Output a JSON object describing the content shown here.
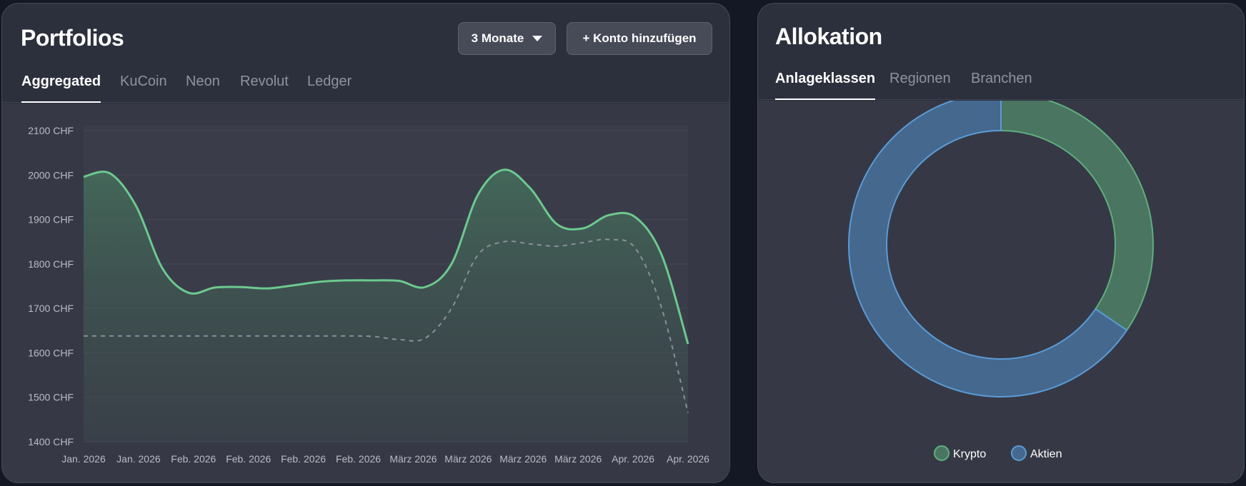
{
  "portfolios": {
    "title": "Portfolios",
    "range_button": "3 Monate",
    "add_button": "+ Konto hinzufügen",
    "tabs": [
      "Aggregated",
      "KuCoin",
      "Neon",
      "Revolut",
      "Ledger"
    ],
    "active_tab": "Aggregated"
  },
  "allocation": {
    "title": "Allokation",
    "tabs": [
      "Anlageklassen",
      "Regionen",
      "Branchen"
    ],
    "active_tab": "Anlageklassen",
    "legend": [
      {
        "label": "Krypto",
        "color": "#4a7560",
        "stroke": "#5fae80"
      },
      {
        "label": "Aktien",
        "color": "#45688f",
        "stroke": "#5b9bd6"
      }
    ],
    "slices": [
      {
        "label": "Krypto",
        "fraction": 0.345
      },
      {
        "label": "Aktien",
        "fraction": 0.655
      }
    ]
  },
  "chart_data": {
    "type": "line",
    "y_unit": "CHF",
    "ylim": [
      1400,
      2100
    ],
    "y_ticks": [
      "2100 CHF",
      "2000 CHF",
      "1900 CHF",
      "1800 CHF",
      "1700 CHF",
      "1600 CHF",
      "1500 CHF",
      "1400 CHF"
    ],
    "y_tick_values": [
      2100,
      2000,
      1900,
      1800,
      1700,
      1600,
      1500,
      1400
    ],
    "x_tick_labels": [
      "Jan. 2026",
      "Jan. 2026",
      "Feb. 2026",
      "Feb. 2026",
      "Feb. 2026",
      "Feb. 2026",
      "März 2026",
      "März 2026",
      "März 2026",
      "März 2026",
      "Apr. 2026",
      "Apr. 2026"
    ],
    "grid": true,
    "series": [
      {
        "style": "solid",
        "color": "#6cc98f",
        "values": [
          1996,
          2004,
          1930,
          1790,
          1735,
          1747,
          1748,
          1745,
          1752,
          1760,
          1763,
          1763,
          1762,
          1748,
          1800,
          1955,
          2012,
          1970,
          1890,
          1880,
          1910,
          1905,
          1820,
          1620
        ]
      },
      {
        "style": "dashed",
        "color": "#8a8f99",
        "values": [
          1638,
          1638,
          1638,
          1638,
          1638,
          1638,
          1638,
          1638,
          1638,
          1638,
          1638,
          1637,
          1630,
          1633,
          1700,
          1820,
          1850,
          1845,
          1840,
          1848,
          1855,
          1835,
          1700,
          1465
        ]
      }
    ]
  }
}
